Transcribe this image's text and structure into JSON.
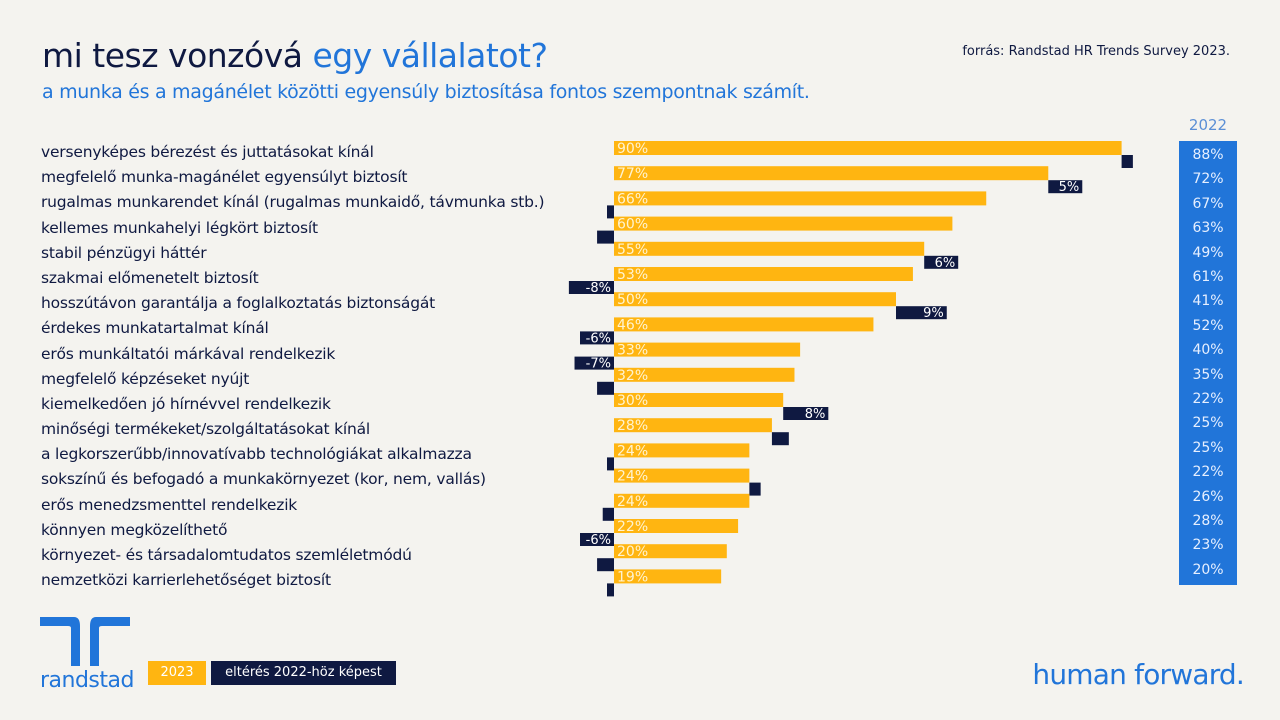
{
  "header": {
    "title_part1": "mi tesz vonzóvá ",
    "title_part2": "egy vállalatot?",
    "subtitle": "a munka és a magánélet közötti egyensúly biztosítása fontos szempontnak számít.",
    "source": "forrás: Randstad HR Trends Survey 2023."
  },
  "colors": {
    "bar_2023": "#ffb511",
    "diff": "#0f1941",
    "col_2022": "#2175d9",
    "brand_blue": "#2175d9",
    "navy": "#0f1941"
  },
  "chart_data": {
    "type": "bar",
    "orientation": "horizontal",
    "title": "mi tesz vonzóvá egy vállalatot?",
    "categories": [
      "versenyképes bérezést és juttatásokat kínál",
      "megfelelő munka-magánélet egyensúlyt biztosít",
      "rugalmas munkarendet kínál (rugalmas munkaidő, távmunka stb.)",
      "kellemes munkahelyi légkört biztosít",
      "stabil pénzügyi háttér",
      "szakmai előmenetelt biztosít",
      "hosszútávon garantálja a foglalkoztatás biztonságát",
      "érdekes munkatartalmat kínál",
      "erős munkáltatói márkával rendelkezik",
      "megfelelő képzéseket nyújt",
      "kiemelkedően jó hírnévvel rendelkezik",
      "minőségi termékeket/szolgáltatásokat kínál",
      "a legkorszerűbb/innovatívabb technológiákat alkalmazza",
      "sokszínű és befogadó a munkakörnyezet (kor, nem, vallás)",
      "erős menedzsmenttel rendelkezik",
      "könnyen megközelíthető",
      "környezet- és társadalomtudatos szemléletmódú",
      "nemzetközi karrierlehetőséget biztosít"
    ],
    "series": [
      {
        "name": "2023",
        "values": [
          90,
          77,
          66,
          60,
          55,
          53,
          50,
          46,
          33,
          32,
          30,
          28,
          24,
          24,
          24,
          22,
          20,
          19
        ],
        "labels": [
          "90%",
          "77%",
          "66%",
          "60%",
          "55%",
          "53%",
          "50%",
          "46%",
          "33%",
          "32%",
          "30%",
          "28%",
          "24%",
          "24%",
          "24%",
          "22%",
          "20%",
          "19%"
        ]
      },
      {
        "name": "eltérés 2022-höz képest",
        "values": [
          2,
          5,
          -1,
          -3,
          6,
          -8,
          9,
          -6,
          -7,
          -3,
          8,
          3,
          -1,
          2,
          -2,
          -6,
          -3,
          -1
        ],
        "labels": [
          "",
          "5%",
          "",
          "",
          "6%",
          "-8%",
          "9%",
          "-6%",
          "-7%",
          "",
          "8%",
          "",
          "",
          "",
          "",
          "-6%",
          "",
          ""
        ]
      },
      {
        "name": "2022",
        "values": [
          88,
          72,
          67,
          63,
          49,
          61,
          41,
          52,
          40,
          35,
          22,
          25,
          25,
          22,
          26,
          28,
          23,
          20
        ],
        "labels": [
          "88%",
          "72%",
          "67%",
          "63%",
          "49%",
          "61%",
          "41%",
          "52%",
          "40%",
          "35%",
          "22%",
          "25%",
          "25%",
          "22%",
          "26%",
          "28%",
          "23%",
          "20%"
        ]
      }
    ],
    "xlim": [
      0,
      100
    ],
    "grid": false,
    "legend": [
      "2023",
      "eltérés 2022-höz képest"
    ],
    "legend_position": "bottom-left",
    "column_2022_header": "2022"
  },
  "legend": {
    "item_2023": "2023",
    "item_diff": "eltérés 2022-höz képest"
  },
  "brand": {
    "logo_text": "randstad",
    "tagline": "human forward."
  }
}
